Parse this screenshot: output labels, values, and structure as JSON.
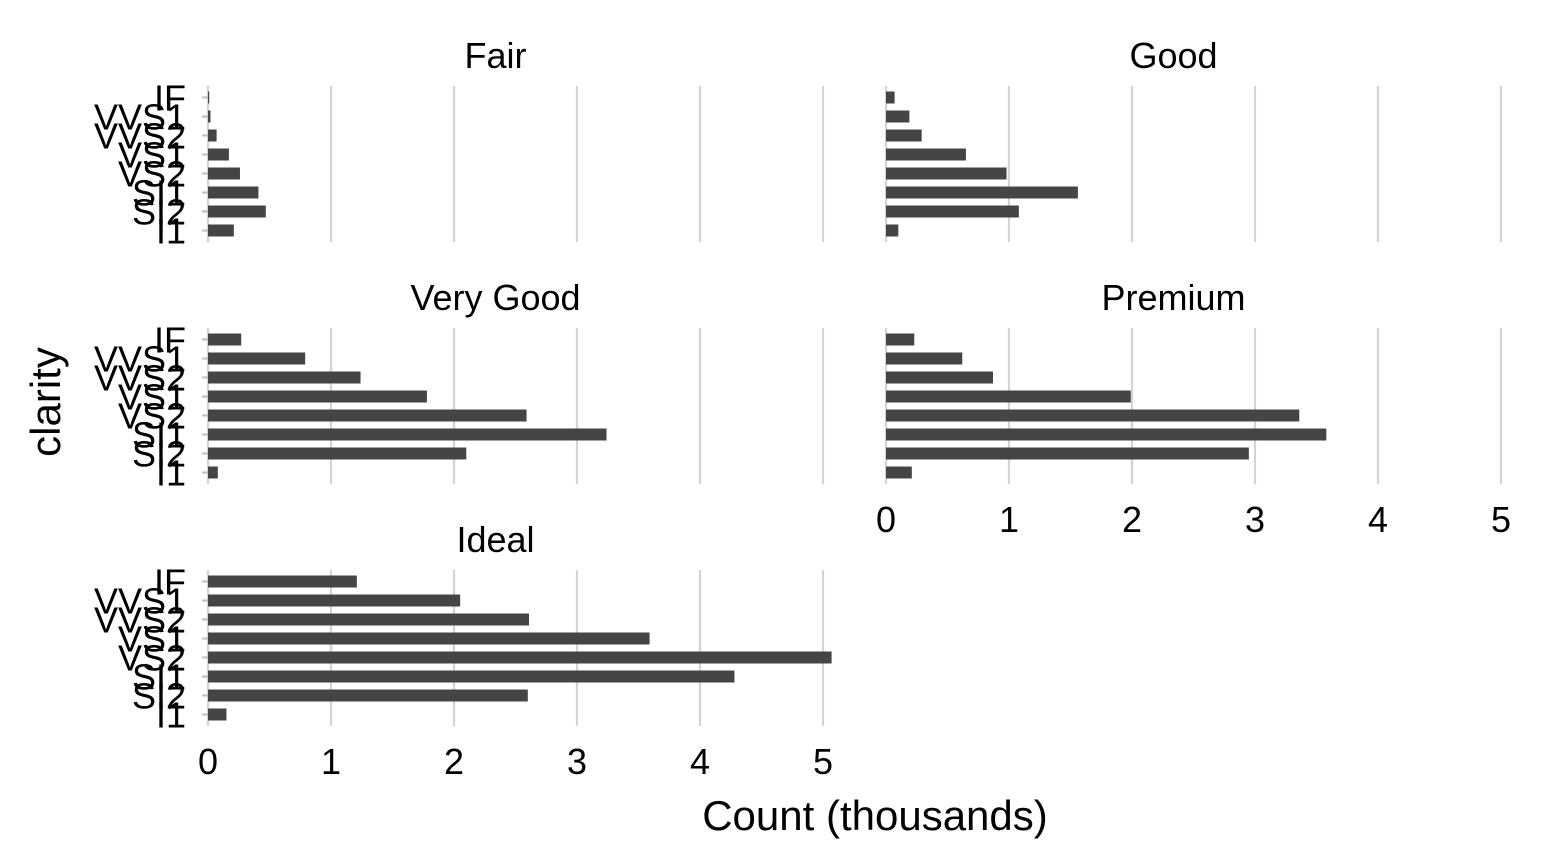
{
  "chart_data": {
    "type": "bar",
    "orientation": "horizontal",
    "xlabel": "Count (thousands)",
    "ylabel": "clarity",
    "xlim": [
      0,
      5.2
    ],
    "xticks": [
      0,
      1,
      2,
      3,
      4,
      5
    ],
    "grid": true,
    "categories": [
      "I1",
      "SI2",
      "SI1",
      "VS2",
      "VS1",
      "VVS2",
      "VVS1",
      "IF"
    ],
    "facets": [
      {
        "name": "Fair",
        "values": [
          0.21,
          0.47,
          0.41,
          0.26,
          0.17,
          0.07,
          0.02,
          0.01
        ]
      },
      {
        "name": "Good",
        "values": [
          0.1,
          1.08,
          1.56,
          0.98,
          0.65,
          0.29,
          0.19,
          0.07
        ]
      },
      {
        "name": "Very Good",
        "values": [
          0.08,
          2.1,
          3.24,
          2.59,
          1.78,
          1.24,
          0.79,
          0.27
        ]
      },
      {
        "name": "Premium",
        "values": [
          0.21,
          2.95,
          3.58,
          3.36,
          1.99,
          0.87,
          0.62,
          0.23
        ]
      },
      {
        "name": "Ideal",
        "values": [
          0.15,
          2.6,
          4.28,
          5.07,
          3.59,
          2.61,
          2.05,
          1.21
        ]
      }
    ]
  }
}
